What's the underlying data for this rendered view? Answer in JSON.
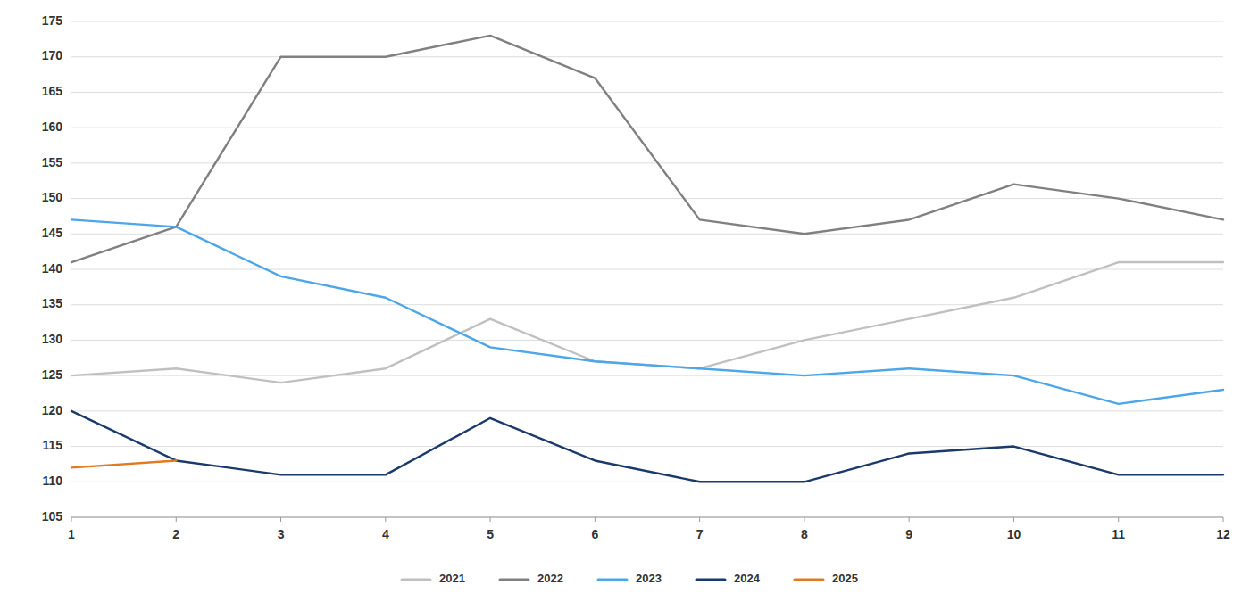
{
  "chart_data": {
    "type": "line",
    "x": [
      1,
      2,
      3,
      4,
      5,
      6,
      7,
      8,
      9,
      10,
      11,
      12
    ],
    "series": [
      {
        "name": "2021",
        "color": "#c0c0c0",
        "values": [
          125,
          126,
          124,
          126,
          133,
          127,
          126,
          130,
          133,
          136,
          141,
          141
        ]
      },
      {
        "name": "2022",
        "color": "#808080",
        "values": [
          141,
          146,
          170,
          170,
          173,
          167,
          147,
          145,
          147,
          152,
          150,
          147
        ]
      },
      {
        "name": "2023",
        "color": "#4da6e8",
        "values": [
          147,
          146,
          139,
          136,
          129,
          127,
          126,
          125,
          126,
          125,
          121,
          123
        ]
      },
      {
        "name": "2024",
        "color": "#1a3a6b",
        "values": [
          120,
          113,
          111,
          111,
          119,
          113,
          110,
          110,
          114,
          115,
          111,
          111
        ]
      },
      {
        "name": "2025",
        "color": "#e07b20",
        "values": [
          112,
          113,
          null,
          null,
          null,
          null,
          null,
          null,
          null,
          null,
          null,
          null
        ]
      }
    ],
    "xlim": [
      1,
      12
    ],
    "ylim": [
      105,
      175
    ],
    "xticks": [
      1,
      2,
      3,
      4,
      5,
      6,
      7,
      8,
      9,
      10,
      11,
      12
    ],
    "yticks": [
      105,
      110,
      115,
      120,
      125,
      130,
      135,
      140,
      145,
      150,
      155,
      160,
      165,
      170,
      175
    ],
    "grid": true,
    "legend": "bottom"
  }
}
